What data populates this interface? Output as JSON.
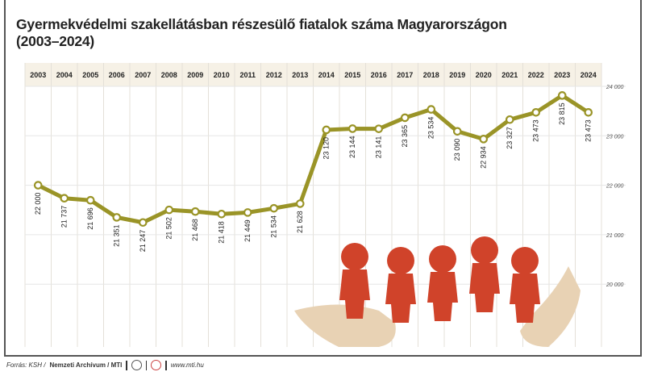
{
  "chart_data": {
    "type": "line",
    "title": "Gyermekvédelmi szakellátásban részesülő fiatalok száma Magyarországon (2003–2024)",
    "title_line1": "Gyermekvédelmi szakellátásban részesülő fiatalok száma Magyarországon",
    "title_line2": "(2003–2024)",
    "categories": [
      "2003",
      "2004",
      "2005",
      "2006",
      "2007",
      "2008",
      "2009",
      "2010",
      "2011",
      "2012",
      "2013",
      "2014",
      "2015",
      "2016",
      "2017",
      "2018",
      "2019",
      "2020",
      "2021",
      "2022",
      "2023",
      "2024"
    ],
    "values": [
      22000,
      21737,
      21696,
      21351,
      21247,
      21502,
      21468,
      21418,
      21449,
      21534,
      21628,
      23120,
      23144,
      23141,
      23365,
      23534,
      23090,
      22934,
      23327,
      23473,
      23815,
      23473
    ],
    "data_labels": [
      "22 000",
      "21 737",
      "21 696",
      "21 351",
      "21 247",
      "21 502",
      "21 468",
      "21 418",
      "21 449",
      "21 534",
      "21 628",
      "23 120",
      "23 144",
      "23 141",
      "23 365",
      "23 534",
      "23 090",
      "22 934",
      "23 327",
      "23 473",
      "23 815",
      "23 473"
    ],
    "y_ticks": [
      24000,
      23000,
      22000,
      21000,
      20000
    ],
    "y_tick_labels": [
      "24 000",
      "23 000",
      "22 000",
      "21 000",
      "20 000"
    ],
    "ylim": [
      20000,
      24000
    ],
    "y_axis_position": "right",
    "x_axis_position": "top",
    "grid": true,
    "line_color": "#9a9427",
    "header_color": "#f6f1e6"
  },
  "footer": {
    "source": "Forrás: KSH /",
    "archive": "Nemzeti Archívum / MTI",
    "url": "www.mti.hu"
  },
  "illustration": {
    "figure_color": "#d0432a",
    "hand_color": "#e8d2b4"
  }
}
